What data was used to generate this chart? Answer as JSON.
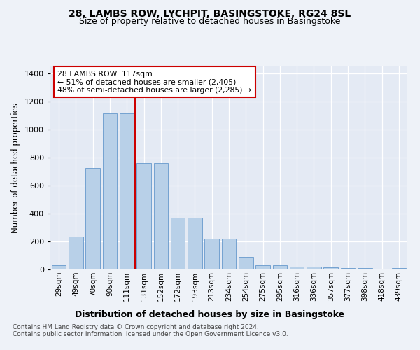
{
  "title1": "28, LAMBS ROW, LYCHPIT, BASINGSTOKE, RG24 8SL",
  "title2": "Size of property relative to detached houses in Basingstoke",
  "xlabel": "Distribution of detached houses by size in Basingstoke",
  "ylabel": "Number of detached properties",
  "categories": [
    "29sqm",
    "49sqm",
    "70sqm",
    "90sqm",
    "111sqm",
    "131sqm",
    "152sqm",
    "172sqm",
    "193sqm",
    "213sqm",
    "234sqm",
    "254sqm",
    "275sqm",
    "295sqm",
    "316sqm",
    "336sqm",
    "357sqm",
    "377sqm",
    "398sqm",
    "418sqm",
    "439sqm"
  ],
  "values": [
    28,
    235,
    725,
    1115,
    1115,
    760,
    760,
    370,
    370,
    220,
    220,
    90,
    30,
    30,
    20,
    20,
    15,
    10,
    10,
    0,
    10
  ],
  "bar_color": "#b8d0e8",
  "bar_edge_color": "#6699cc",
  "vline_color": "#cc0000",
  "annotation_text": "28 LAMBS ROW: 117sqm\n← 51% of detached houses are smaller (2,405)\n48% of semi-detached houses are larger (2,285) →",
  "annotation_box_facecolor": "#ffffff",
  "annotation_box_edgecolor": "#cc0000",
  "ylim": [
    0,
    1450
  ],
  "yticks": [
    0,
    200,
    400,
    600,
    800,
    1000,
    1200,
    1400
  ],
  "footer1": "Contains HM Land Registry data © Crown copyright and database right 2024.",
  "footer2": "Contains public sector information licensed under the Open Government Licence v3.0.",
  "bg_color": "#eef2f8",
  "plot_bg_color": "#e4eaf4"
}
